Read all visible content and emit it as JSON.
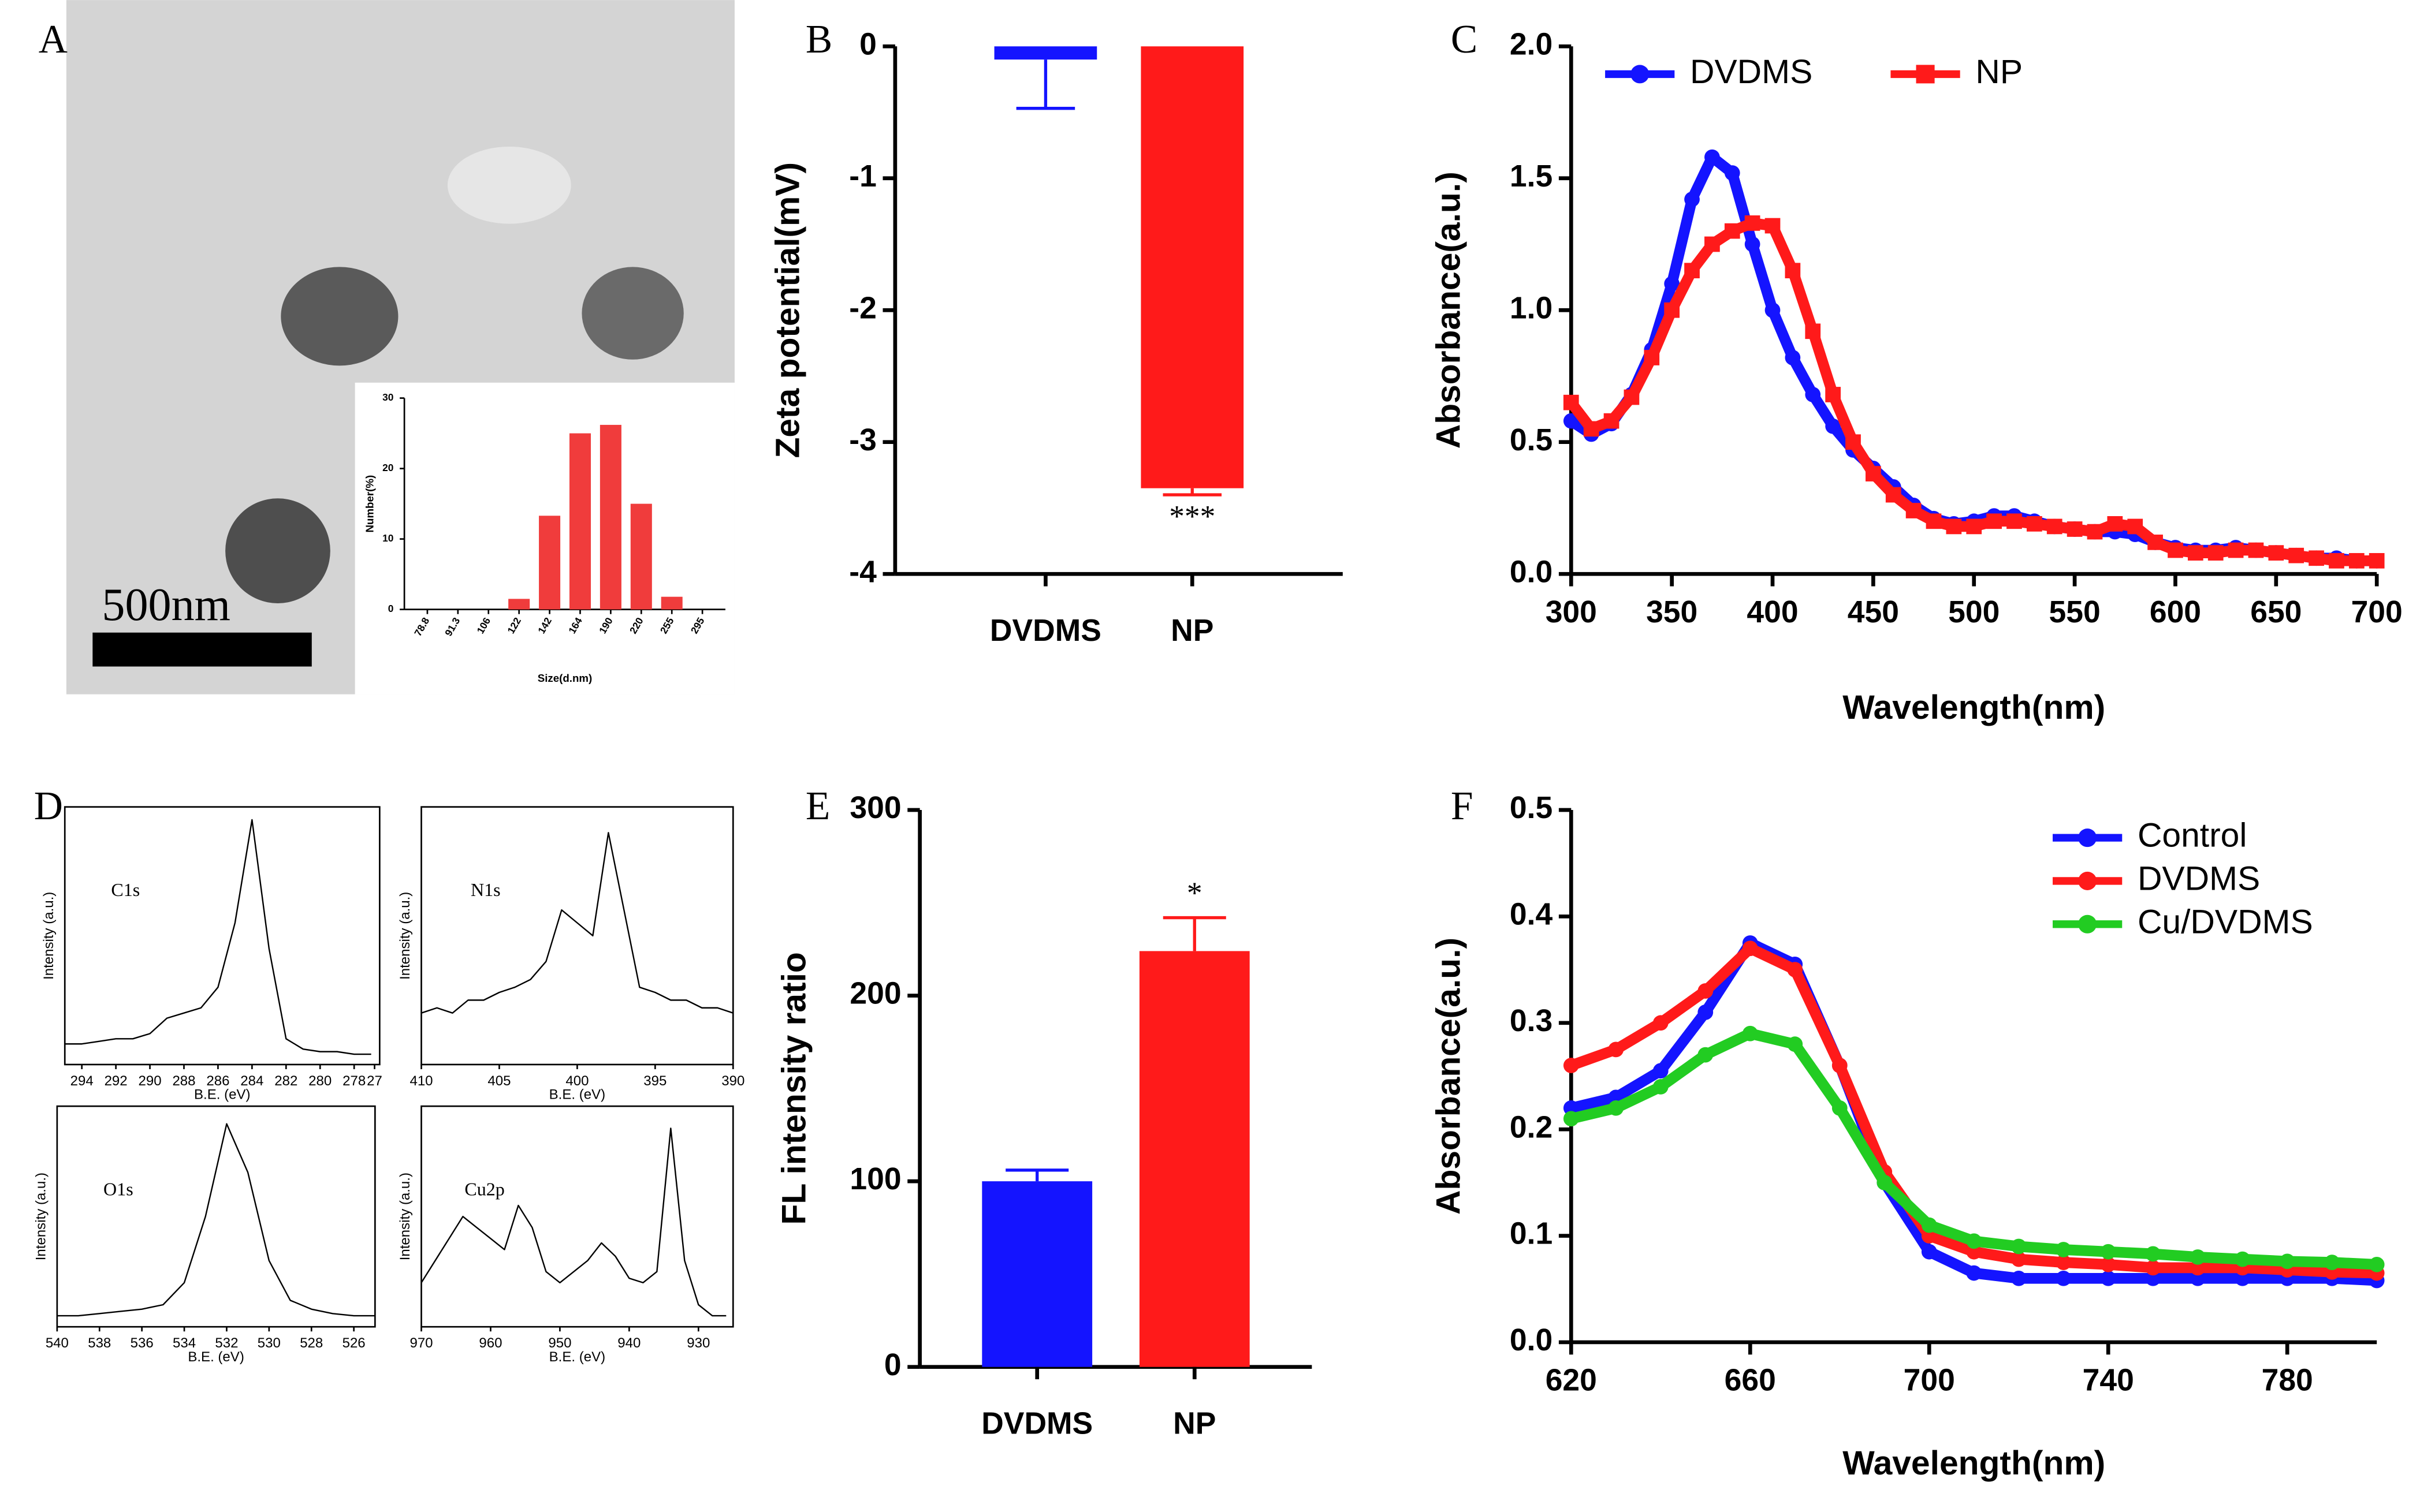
{
  "chart_data": [
    {
      "type": "bar",
      "panel_label": "A",
      "scale_bar": "500nm",
      "categories": [
        "78.8",
        "91.3",
        "106",
        "122",
        "142",
        "164",
        "190",
        "220",
        "255",
        "295"
      ],
      "values": [
        0,
        0,
        0,
        1.5,
        13.3,
        25,
        26.2,
        15,
        1.8,
        0
      ],
      "color": "#f03c3c",
      "ylim": [
        0,
        30
      ],
      "yticks": [
        0,
        10,
        20,
        30
      ],
      "xlabel": "Size(d.nm)",
      "ylabel": "Number(%)"
    },
    {
      "type": "bar",
      "panel_label": "B",
      "categories": [
        "DVDMS",
        "NP"
      ],
      "values": [
        -0.1,
        -3.35
      ],
      "errors": [
        0.37,
        0.05
      ],
      "colors": [
        "#1414ff",
        "#ff1a1a"
      ],
      "significance": [
        null,
        "***"
      ],
      "ylim": [
        -4,
        0
      ],
      "yticks": [
        0,
        -1,
        -2,
        -3,
        -4
      ],
      "ylabel": "Zeta potential(mV)"
    },
    {
      "type": "line",
      "panel_label": "C",
      "xlabel": "Wavelength(nm)",
      "ylabel": "Absorbance(a.u.)",
      "legend": "upper left",
      "x": [
        300,
        310,
        320,
        330,
        340,
        350,
        360,
        370,
        380,
        390,
        400,
        410,
        420,
        430,
        440,
        450,
        460,
        470,
        480,
        490,
        500,
        510,
        520,
        530,
        540,
        550,
        560,
        570,
        580,
        590,
        600,
        610,
        620,
        630,
        640,
        650,
        660,
        670,
        680,
        690,
        700
      ],
      "series": [
        {
          "name": "DVDMS",
          "color": "#1414ff",
          "marker": "circle",
          "values": [
            0.58,
            0.53,
            0.57,
            0.68,
            0.85,
            1.1,
            1.42,
            1.58,
            1.52,
            1.25,
            1.0,
            0.82,
            0.68,
            0.56,
            0.47,
            0.4,
            0.33,
            0.26,
            0.21,
            0.19,
            0.2,
            0.22,
            0.22,
            0.2,
            0.18,
            0.17,
            0.16,
            0.16,
            0.15,
            0.12,
            0.1,
            0.09,
            0.09,
            0.1,
            0.09,
            0.08,
            0.07,
            0.06,
            0.06,
            0.05,
            0.05
          ]
        },
        {
          "name": "NP",
          "color": "#ff1a1a",
          "marker": "square",
          "values": [
            0.65,
            0.55,
            0.58,
            0.67,
            0.82,
            1.0,
            1.15,
            1.25,
            1.3,
            1.33,
            1.32,
            1.15,
            0.92,
            0.68,
            0.5,
            0.38,
            0.3,
            0.24,
            0.2,
            0.18,
            0.18,
            0.2,
            0.2,
            0.19,
            0.18,
            0.17,
            0.16,
            0.19,
            0.18,
            0.12,
            0.09,
            0.08,
            0.08,
            0.09,
            0.09,
            0.08,
            0.07,
            0.06,
            0.05,
            0.05,
            0.05
          ]
        }
      ],
      "xlim": [
        300,
        700
      ],
      "xticks": [
        300,
        350,
        400,
        450,
        500,
        550,
        600,
        650,
        700
      ],
      "ylim": [
        0,
        2
      ],
      "yticks": [
        {
          "value": 0,
          "label": "0.0"
        },
        0.5,
        {
          "value": 1,
          "label": "1.0"
        },
        1.5,
        {
          "value": 2,
          "label": "2.0"
        }
      ]
    },
    {
      "type": "line",
      "panel_label": "D",
      "title": "C1s",
      "frame": true,
      "xlabel": "B.E. (eV)",
      "ylabel": "Intensity (a.u.)",
      "x": [
        295,
        294,
        293,
        292,
        291,
        290,
        289,
        288,
        287,
        286,
        285,
        284,
        283,
        282,
        281,
        280,
        279,
        278,
        277
      ],
      "series": [
        {
          "color": "#000000",
          "values": [
            0.08,
            0.08,
            0.09,
            0.1,
            0.1,
            0.12,
            0.18,
            0.2,
            0.22,
            0.3,
            0.55,
            0.95,
            0.45,
            0.1,
            0.06,
            0.05,
            0.05,
            0.04,
            0.04
          ]
        }
      ],
      "xlim": [
        295,
        276.5
      ],
      "xticks": [
        294,
        292,
        290,
        288,
        286,
        284,
        282,
        280,
        278,
        {
          "value": 276.8,
          "label": "27"
        }
      ],
      "ylim": [
        0,
        1
      ]
    },
    {
      "type": "line",
      "title": "N1s",
      "frame": true,
      "xlabel": "B.E. (eV)",
      "ylabel": "Intensity (a.u.)",
      "x": [
        410,
        409,
        408,
        407,
        406,
        405,
        404,
        403,
        402,
        401,
        400,
        399,
        398,
        397,
        396,
        395,
        394,
        393,
        392,
        391,
        390
      ],
      "series": [
        {
          "color": "#000000",
          "values": [
            0.2,
            0.22,
            0.2,
            0.25,
            0.25,
            0.28,
            0.3,
            0.33,
            0.4,
            0.6,
            0.55,
            0.5,
            0.9,
            0.6,
            0.3,
            0.28,
            0.25,
            0.25,
            0.22,
            0.22,
            0.2
          ]
        }
      ],
      "xlim": [
        410,
        390
      ],
      "xticks": [
        410,
        405,
        400,
        395,
        390
      ],
      "ylim": [
        0,
        1
      ]
    },
    {
      "type": "line",
      "title": "O1s",
      "frame": true,
      "xlabel": "B.E. (eV)",
      "ylabel": "Intensity (a.u.)",
      "x": [
        540,
        539,
        538,
        537,
        536,
        535,
        534,
        533,
        532,
        531,
        530,
        529,
        528,
        527,
        526,
        525
      ],
      "series": [
        {
          "color": "#000000",
          "values": [
            0.05,
            0.05,
            0.06,
            0.07,
            0.08,
            0.1,
            0.2,
            0.5,
            0.92,
            0.7,
            0.3,
            0.12,
            0.08,
            0.06,
            0.05,
            0.05
          ]
        }
      ],
      "xlim": [
        540,
        525
      ],
      "xticks": [
        540,
        538,
        536,
        534,
        532,
        530,
        528,
        526
      ],
      "ylim": [
        0,
        1
      ]
    },
    {
      "type": "line",
      "title": "Cu2p",
      "frame": true,
      "xlabel": "B.E. (eV)",
      "ylabel": "Intensity (a.u.)",
      "x": [
        970,
        968,
        966,
        964,
        962,
        960,
        958,
        956,
        954,
        952,
        950,
        948,
        946,
        944,
        942,
        940,
        938,
        936,
        934,
        932,
        930,
        928,
        926
      ],
      "series": [
        {
          "color": "#000000",
          "values": [
            0.2,
            0.3,
            0.4,
            0.5,
            0.45,
            0.4,
            0.35,
            0.55,
            0.45,
            0.25,
            0.2,
            0.25,
            0.3,
            0.38,
            0.32,
            0.22,
            0.2,
            0.25,
            0.9,
            0.3,
            0.1,
            0.05,
            0.05
          ]
        }
      ],
      "xlim": [
        970,
        925
      ],
      "xticks": [
        970,
        960,
        950,
        940,
        930
      ],
      "ylim": [
        0,
        1
      ]
    },
    {
      "type": "bar",
      "panel_label": "E",
      "categories": [
        "DVDMS",
        "NP"
      ],
      "values": [
        100,
        224
      ],
      "errors": [
        6,
        18
      ],
      "colors": [
        "#1414ff",
        "#ff1a1a"
      ],
      "significance": [
        null,
        "*"
      ],
      "ylim": [
        0,
        300
      ],
      "yticks": [
        0,
        100,
        200,
        300
      ],
      "ylabel": "FL intensity ratio"
    },
    {
      "type": "line",
      "panel_label": "F",
      "xlabel": "Wavelength(nm)",
      "ylabel": "Absorbance(a.u.)",
      "legend": "upper right",
      "x": [
        620,
        630,
        640,
        650,
        660,
        670,
        680,
        690,
        700,
        710,
        720,
        730,
        740,
        750,
        760,
        770,
        780,
        790,
        800
      ],
      "series": [
        {
          "name": "Control",
          "color": "#1414ff",
          "marker": "circle",
          "values": [
            0.22,
            0.23,
            0.255,
            0.31,
            0.375,
            0.355,
            0.26,
            0.15,
            0.085,
            0.065,
            0.06,
            0.06,
            0.06,
            0.06,
            0.06,
            0.06,
            0.06,
            0.06,
            0.058
          ]
        },
        {
          "name": "DVDMS",
          "color": "#ff1a1a",
          "marker": "circle",
          "values": [
            0.26,
            0.275,
            0.3,
            0.33,
            0.37,
            0.35,
            0.26,
            0.16,
            0.1,
            0.085,
            0.078,
            0.075,
            0.073,
            0.07,
            0.07,
            0.07,
            0.068,
            0.066,
            0.065
          ]
        },
        {
          "name": "Cu/DVDMS",
          "color": "#22cc22",
          "marker": "circle",
          "values": [
            0.21,
            0.22,
            0.24,
            0.27,
            0.29,
            0.28,
            0.22,
            0.15,
            0.11,
            0.095,
            0.09,
            0.087,
            0.085,
            0.083,
            0.08,
            0.078,
            0.076,
            0.075,
            0.073
          ]
        }
      ],
      "xlim": [
        620,
        800
      ],
      "xticks": [
        620,
        660,
        700,
        740,
        780
      ],
      "ylim": [
        0,
        0.5
      ],
      "yticks": [
        {
          "value": 0,
          "label": "0.0"
        },
        0.1,
        0.2,
        0.3,
        0.4,
        0.5
      ]
    }
  ]
}
